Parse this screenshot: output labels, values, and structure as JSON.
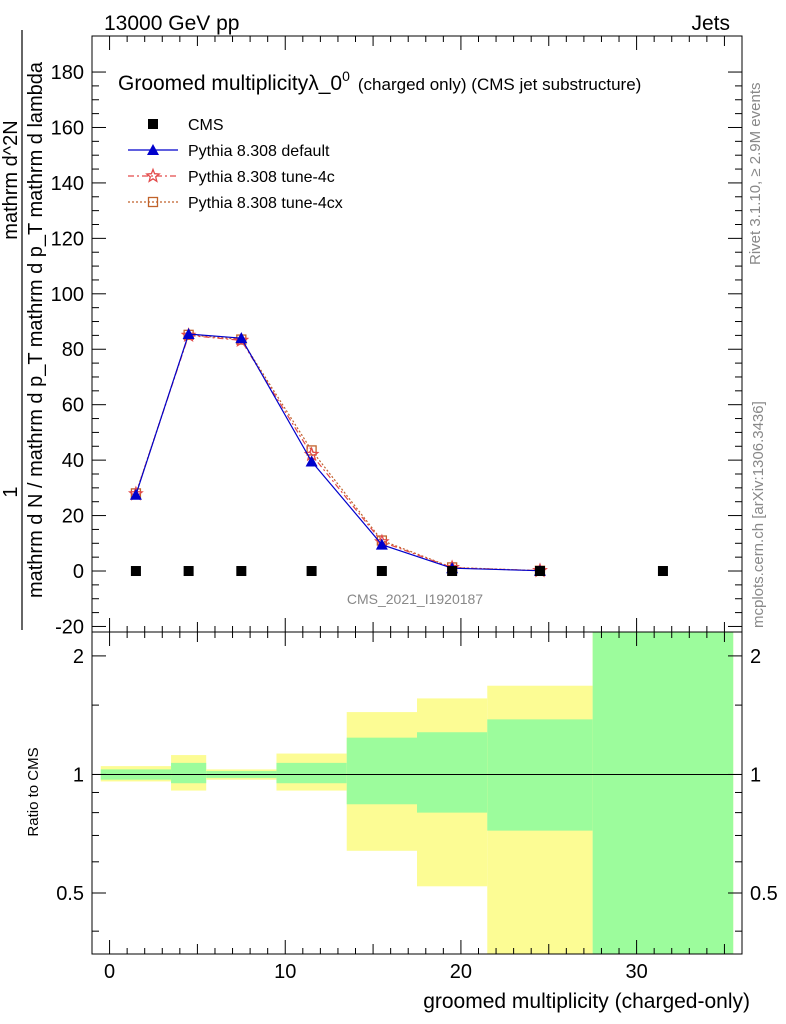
{
  "header": {
    "energy_label": "13000 GeV pp",
    "category_label": "Jets",
    "title_main": "Groomed multiplicityλ_0",
    "title_sup": "0",
    "title_suffix": "(charged only) (CMS jet substructure)",
    "analysis_id": "CMS_2021_I1920187",
    "side_rivet": "Rivet 3.1.10, ≥ 2.9M events",
    "side_mcplots": "mcplots.cern.ch [arXiv:1306.3436]"
  },
  "colors": {
    "cms": "#000000",
    "default": "#0000cc",
    "tune4c": "#e34a4a",
    "tune4cx": "#c0622a",
    "band_inner": "#9cfc9c",
    "band_outer": "#fcfc94"
  },
  "chart_data": [
    {
      "type": "line",
      "ylabel_top": "1",
      "ylabel_main": "mathrm d N / mathrm d p_T mathrm d p_T mathrm d lambda",
      "ylabel_num": "mathrm d^2N",
      "ylim": [
        -22,
        193
      ],
      "xlim": [
        -1,
        36
      ],
      "yticks": [
        -20,
        0,
        20,
        40,
        60,
        80,
        100,
        120,
        140,
        160,
        180
      ],
      "legend_position": "top-left",
      "series": [
        {
          "name": "CMS",
          "marker": "square",
          "x": [
            1.5,
            4.5,
            7.5,
            11.5,
            15.5,
            19.5,
            24.5,
            31.5
          ],
          "y": [
            0,
            0,
            0,
            0,
            0,
            0,
            0,
            0
          ]
        },
        {
          "name": "Pythia 8.308 default",
          "marker": "triangle",
          "x": [
            1.5,
            4.5,
            7.5,
            11.5,
            15.5,
            19.5,
            24.5
          ],
          "y": [
            27.5,
            85.5,
            84.0,
            39.5,
            9.5,
            1.0,
            0.1
          ]
        },
        {
          "name": "Pythia 8.308 tune-4c",
          "marker": "star",
          "x": [
            1.5,
            4.5,
            7.5,
            11.5,
            15.5,
            19.5,
            24.5
          ],
          "y": [
            27.8,
            85.0,
            83.2,
            42.0,
            10.5,
            1.2,
            0.1
          ]
        },
        {
          "name": "Pythia 8.308 tune-4cx",
          "marker": "open-square",
          "x": [
            1.5,
            4.5,
            7.5,
            11.5,
            15.5,
            19.5,
            24.5
          ],
          "y": [
            28.0,
            85.2,
            83.5,
            43.5,
            11.0,
            1.3,
            0.1
          ]
        }
      ]
    },
    {
      "type": "area",
      "ylabel": "Ratio to CMS",
      "xlabel": "groomed multiplicity (charged-only)",
      "ylim": [
        0.35,
        2.3
      ],
      "xlim": [
        -1,
        36
      ],
      "xticks": [
        0,
        10,
        20,
        30
      ],
      "yticks": [
        0.5,
        1,
        2
      ],
      "bins": [
        {
          "lo": -0.5,
          "hi": 3.5,
          "inner": [
            0.97,
            1.03
          ],
          "outer": [
            0.96,
            1.05
          ]
        },
        {
          "lo": 3.5,
          "hi": 5.5,
          "inner": [
            0.95,
            1.07
          ],
          "outer": [
            0.91,
            1.12
          ]
        },
        {
          "lo": 5.5,
          "hi": 9.5,
          "inner": [
            0.98,
            1.02
          ],
          "outer": [
            0.97,
            1.03
          ]
        },
        {
          "lo": 9.5,
          "hi": 13.5,
          "inner": [
            0.95,
            1.07
          ],
          "outer": [
            0.91,
            1.13
          ]
        },
        {
          "lo": 13.5,
          "hi": 17.5,
          "inner": [
            0.84,
            1.24
          ],
          "outer": [
            0.64,
            1.44
          ]
        },
        {
          "lo": 17.5,
          "hi": 21.5,
          "inner": [
            0.8,
            1.28
          ],
          "outer": [
            0.52,
            1.56
          ]
        },
        {
          "lo": 21.5,
          "hi": 27.5,
          "inner": [
            0.72,
            1.38
          ],
          "outer": [
            0.35,
            1.68
          ]
        },
        {
          "lo": 27.5,
          "hi": 35.5,
          "inner": [
            0.35,
            2.3
          ],
          "outer": [
            0.35,
            2.3
          ]
        }
      ]
    }
  ]
}
